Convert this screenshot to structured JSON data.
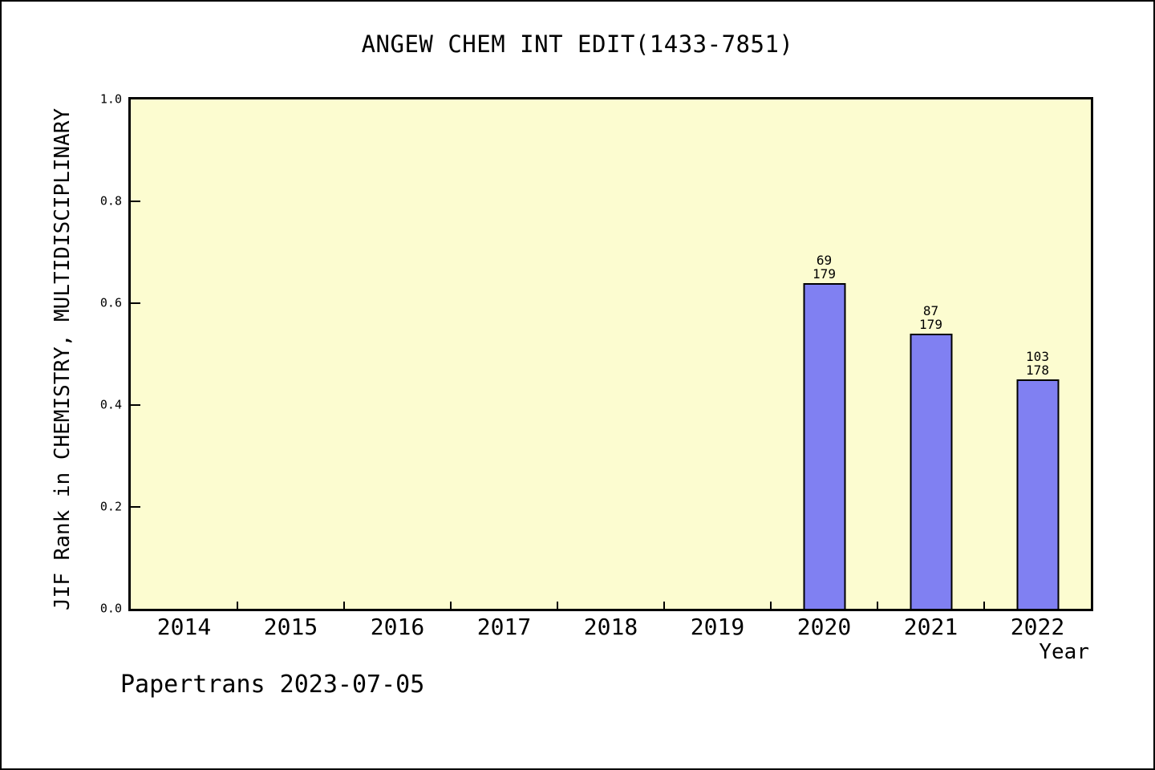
{
  "page": {
    "footer": "Papertrans 2023-07-05"
  },
  "chart_data": {
    "type": "bar",
    "title": "ANGEW CHEM INT EDIT(1433-7851)",
    "xlabel": "Year",
    "ylabel": "JIF Rank in CHEMISTRY, MULTIDISCIPLINARY",
    "categories": [
      "2014",
      "2015",
      "2016",
      "2017",
      "2018",
      "2019",
      "2020",
      "2021",
      "2022"
    ],
    "values": [
      null,
      null,
      null,
      null,
      null,
      null,
      0.64,
      0.54,
      0.45
    ],
    "bars": [
      {
        "category": "2020",
        "rank": "69",
        "total": "179",
        "value": 0.64
      },
      {
        "category": "2021",
        "rank": "87",
        "total": "179",
        "value": 0.54
      },
      {
        "category": "2022",
        "rank": "103",
        "total": "178",
        "value": 0.45
      }
    ],
    "ylim": [
      0.0,
      1.0
    ],
    "yticks": [
      "0.0",
      "0.2",
      "0.4",
      "0.6",
      "0.8",
      "1.0"
    ],
    "grid": "off",
    "legend": "none",
    "colors": {
      "bar_fill": "#8080f2",
      "bar_border": "#000000",
      "plot_background": "#fcfcd0",
      "page_background": "#ffffff",
      "text": "#000000"
    }
  }
}
